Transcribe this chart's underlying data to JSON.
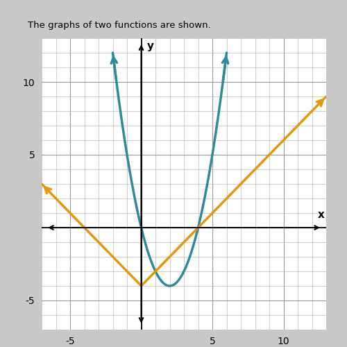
{
  "title": "The graphs of two functions are shown.",
  "xlim": [
    -7,
    13
  ],
  "ylim": [
    -7,
    13
  ],
  "xticks": [
    -5,
    5,
    10
  ],
  "yticks": [
    -5,
    5,
    10
  ],
  "xlabel": "x",
  "ylabel": "y",
  "parabola_color": "#2e8b9a",
  "abs_color": "#e8960a",
  "plot_bg": "#ffffff",
  "outer_bg": "#c8c8c8",
  "grid_minor_color": "#bbbbbb",
  "grid_major_color": "#999999",
  "parabola_vertex_x": 2,
  "parabola_vertex_y": -4,
  "abs_vertex_x": 0,
  "abs_vertex_y": -4,
  "abs_slope": 1,
  "fig_width": 5.0,
  "fig_height": 5.0,
  "dpi": 100
}
